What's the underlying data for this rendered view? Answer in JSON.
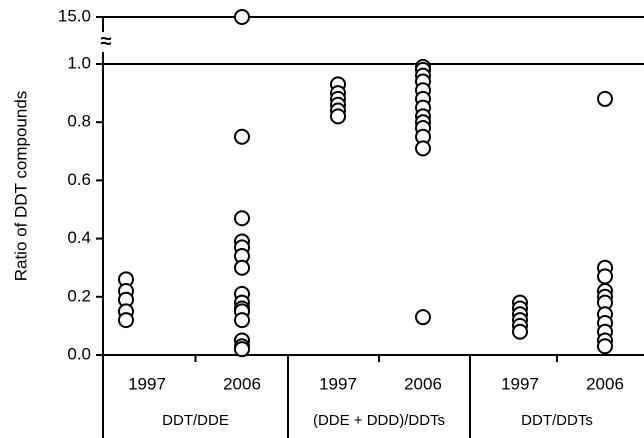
{
  "chart_data": {
    "type": "strip",
    "y_label": "Ratio of DDT compounds",
    "break_symbol": "≈",
    "ylim": [
      0,
      15
    ],
    "ybreak": [
      1,
      15
    ],
    "yticks": [
      {
        "value": 0,
        "label": "0.0"
      },
      {
        "value": 0.2,
        "label": "0.2"
      },
      {
        "value": 0.4,
        "label": "0.4"
      },
      {
        "value": 0.6,
        "label": "0.6"
      },
      {
        "value": 0.8,
        "label": "0.8"
      },
      {
        "value": 1,
        "label": "1.0"
      },
      {
        "value": 15,
        "label": "15.0"
      }
    ],
    "groups": [
      {
        "label": "DDT/DDE",
        "categories": [
          "1997",
          "2006"
        ],
        "values": [
          [
            0.26,
            0.22,
            0.19,
            0.15,
            0.12
          ],
          [
            15,
            0.75,
            0.47,
            0.39,
            0.37,
            0.34,
            0.3,
            0.21,
            0.18,
            0.16,
            0.15,
            0.12,
            0.05,
            0.03,
            0.02
          ]
        ]
      },
      {
        "label": "(DDE + DDD)/DDTs",
        "categories": [
          "1997",
          "2006"
        ],
        "values": [
          [
            0.93,
            0.9,
            0.88,
            0.86,
            0.84,
            0.82
          ],
          [
            0.99,
            0.98,
            0.96,
            0.94,
            0.91,
            0.88,
            0.85,
            0.82,
            0.8,
            0.78,
            0.75,
            0.71,
            0.13
          ]
        ]
      },
      {
        "label": "DDT/DDTs",
        "categories": [
          "1997",
          "2006"
        ],
        "values": [
          [
            0.18,
            0.16,
            0.14,
            0.12,
            0.1,
            0.08
          ],
          [
            0.88,
            0.3,
            0.27,
            0.22,
            0.2,
            0.18,
            0.14,
            0.11,
            0.08,
            0.05,
            0.03
          ]
        ]
      }
    ]
  }
}
